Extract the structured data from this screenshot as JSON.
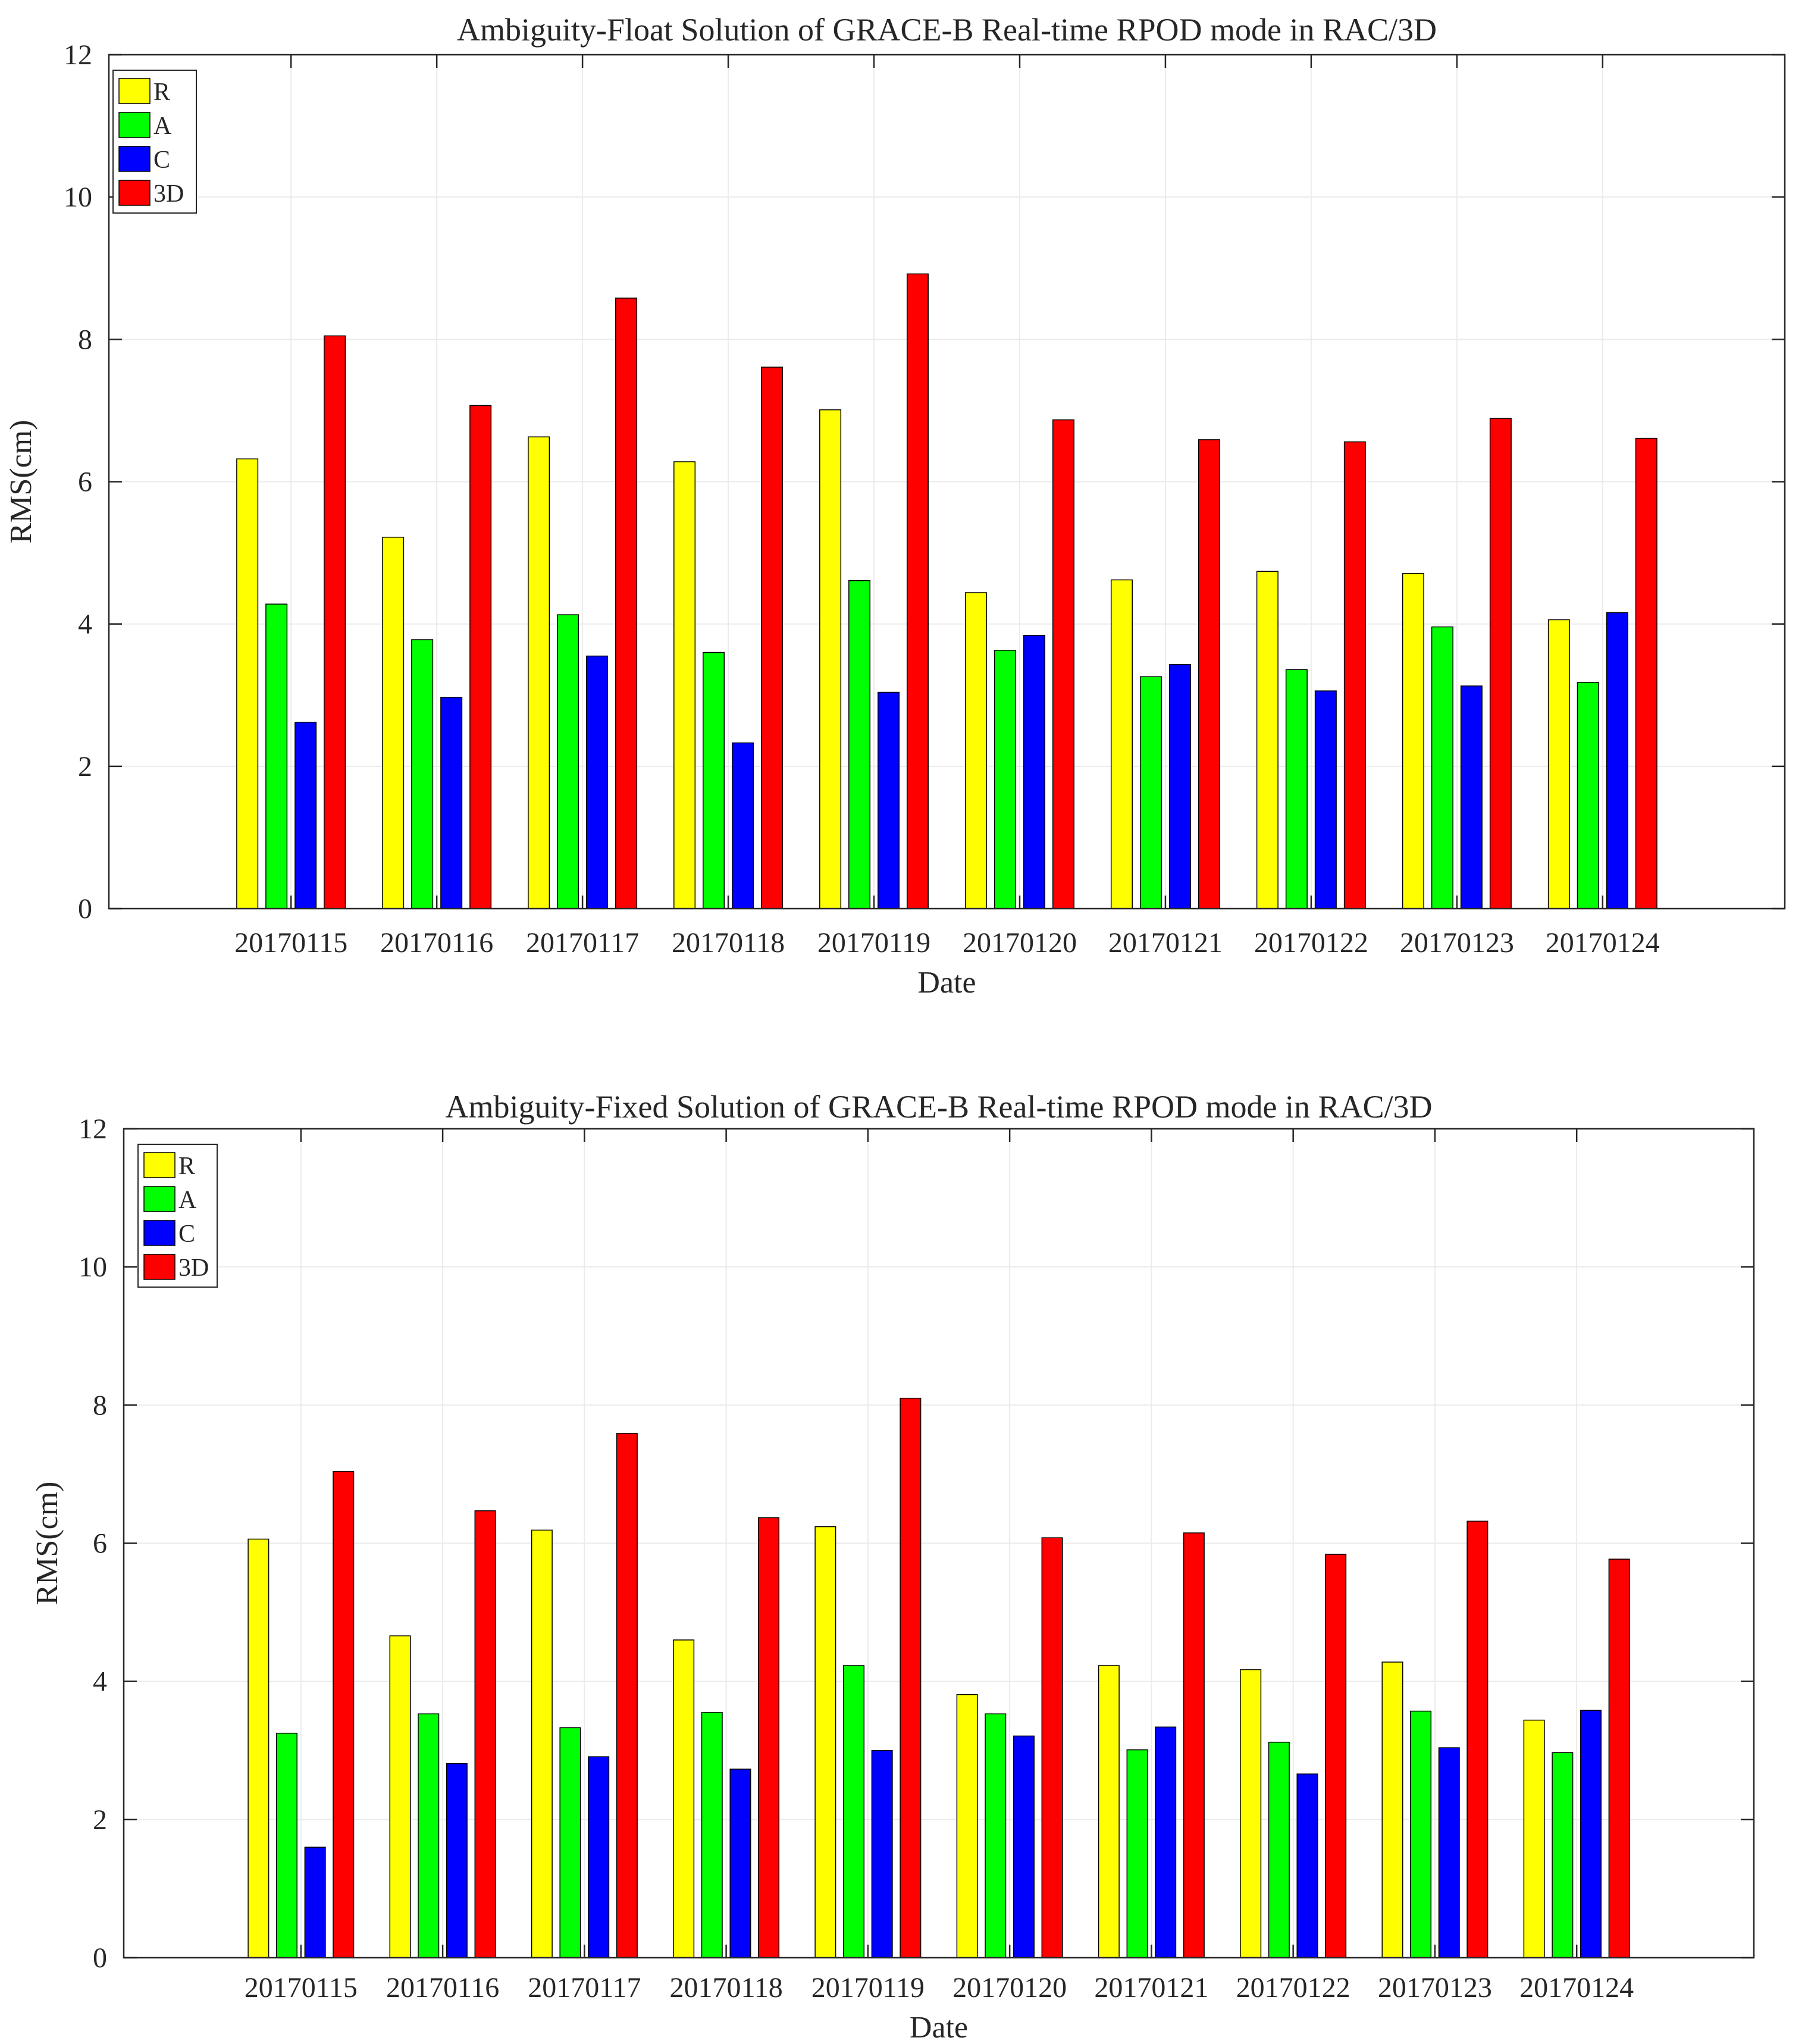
{
  "chart_data": [
    {
      "type": "bar",
      "title": "Ambiguity-Float Solution of GRACE-B Real-time RPOD mode in RAC/3D",
      "xlabel": "Date",
      "ylabel": "RMS(cm)",
      "ylim": [
        0,
        12
      ],
      "yticks": [
        "0",
        "2",
        "4",
        "6",
        "8",
        "10",
        "12"
      ],
      "grid": true,
      "legend_position": "top-left",
      "categories": [
        "20170115",
        "20170116",
        "20170117",
        "20170118",
        "20170119",
        "20170120",
        "20170121",
        "20170122",
        "20170123",
        "20170124"
      ],
      "series": [
        {
          "name": "R",
          "color": "#ffff00",
          "values": [
            6.32,
            5.22,
            6.63,
            6.28,
            7.01,
            4.44,
            4.62,
            4.74,
            4.71,
            4.06
          ]
        },
        {
          "name": "A",
          "color": "#00ff00",
          "values": [
            4.28,
            3.78,
            4.13,
            3.6,
            4.61,
            3.63,
            3.26,
            3.36,
            3.96,
            3.18
          ]
        },
        {
          "name": "C",
          "color": "#0000ff",
          "values": [
            2.62,
            2.97,
            3.55,
            2.33,
            3.04,
            3.84,
            3.43,
            3.06,
            3.13,
            4.16
          ]
        },
        {
          "name": "3D",
          "color": "#ff0000",
          "values": [
            8.05,
            7.07,
            8.58,
            7.61,
            8.92,
            6.87,
            6.59,
            6.56,
            6.89,
            6.61
          ]
        }
      ]
    },
    {
      "type": "bar",
      "title": "Ambiguity-Fixed Solution of GRACE-B Real-time RPOD mode in RAC/3D",
      "xlabel": "Date",
      "ylabel": "RMS(cm)",
      "ylim": [
        0,
        12
      ],
      "yticks": [
        "0",
        "2",
        "4",
        "6",
        "8",
        "10",
        "12"
      ],
      "grid": true,
      "legend_position": "top-left",
      "categories": [
        "20170115",
        "20170116",
        "20170117",
        "20170118",
        "20170119",
        "20170120",
        "20170121",
        "20170122",
        "20170123",
        "20170124"
      ],
      "series": [
        {
          "name": "R",
          "color": "#ffff00",
          "values": [
            6.06,
            4.66,
            6.19,
            4.6,
            6.24,
            3.81,
            4.23,
            4.17,
            4.28,
            3.44
          ]
        },
        {
          "name": "A",
          "color": "#00ff00",
          "values": [
            3.25,
            3.53,
            3.33,
            3.55,
            4.23,
            3.53,
            3.01,
            3.12,
            3.57,
            2.97
          ]
        },
        {
          "name": "C",
          "color": "#0000ff",
          "values": [
            1.6,
            2.81,
            2.91,
            2.73,
            3.0,
            3.21,
            3.34,
            2.66,
            3.04,
            3.58
          ]
        },
        {
          "name": "3D",
          "color": "#ff0000",
          "values": [
            7.04,
            6.47,
            7.59,
            6.37,
            8.1,
            6.08,
            6.15,
            5.84,
            6.32,
            5.77
          ]
        }
      ]
    }
  ]
}
